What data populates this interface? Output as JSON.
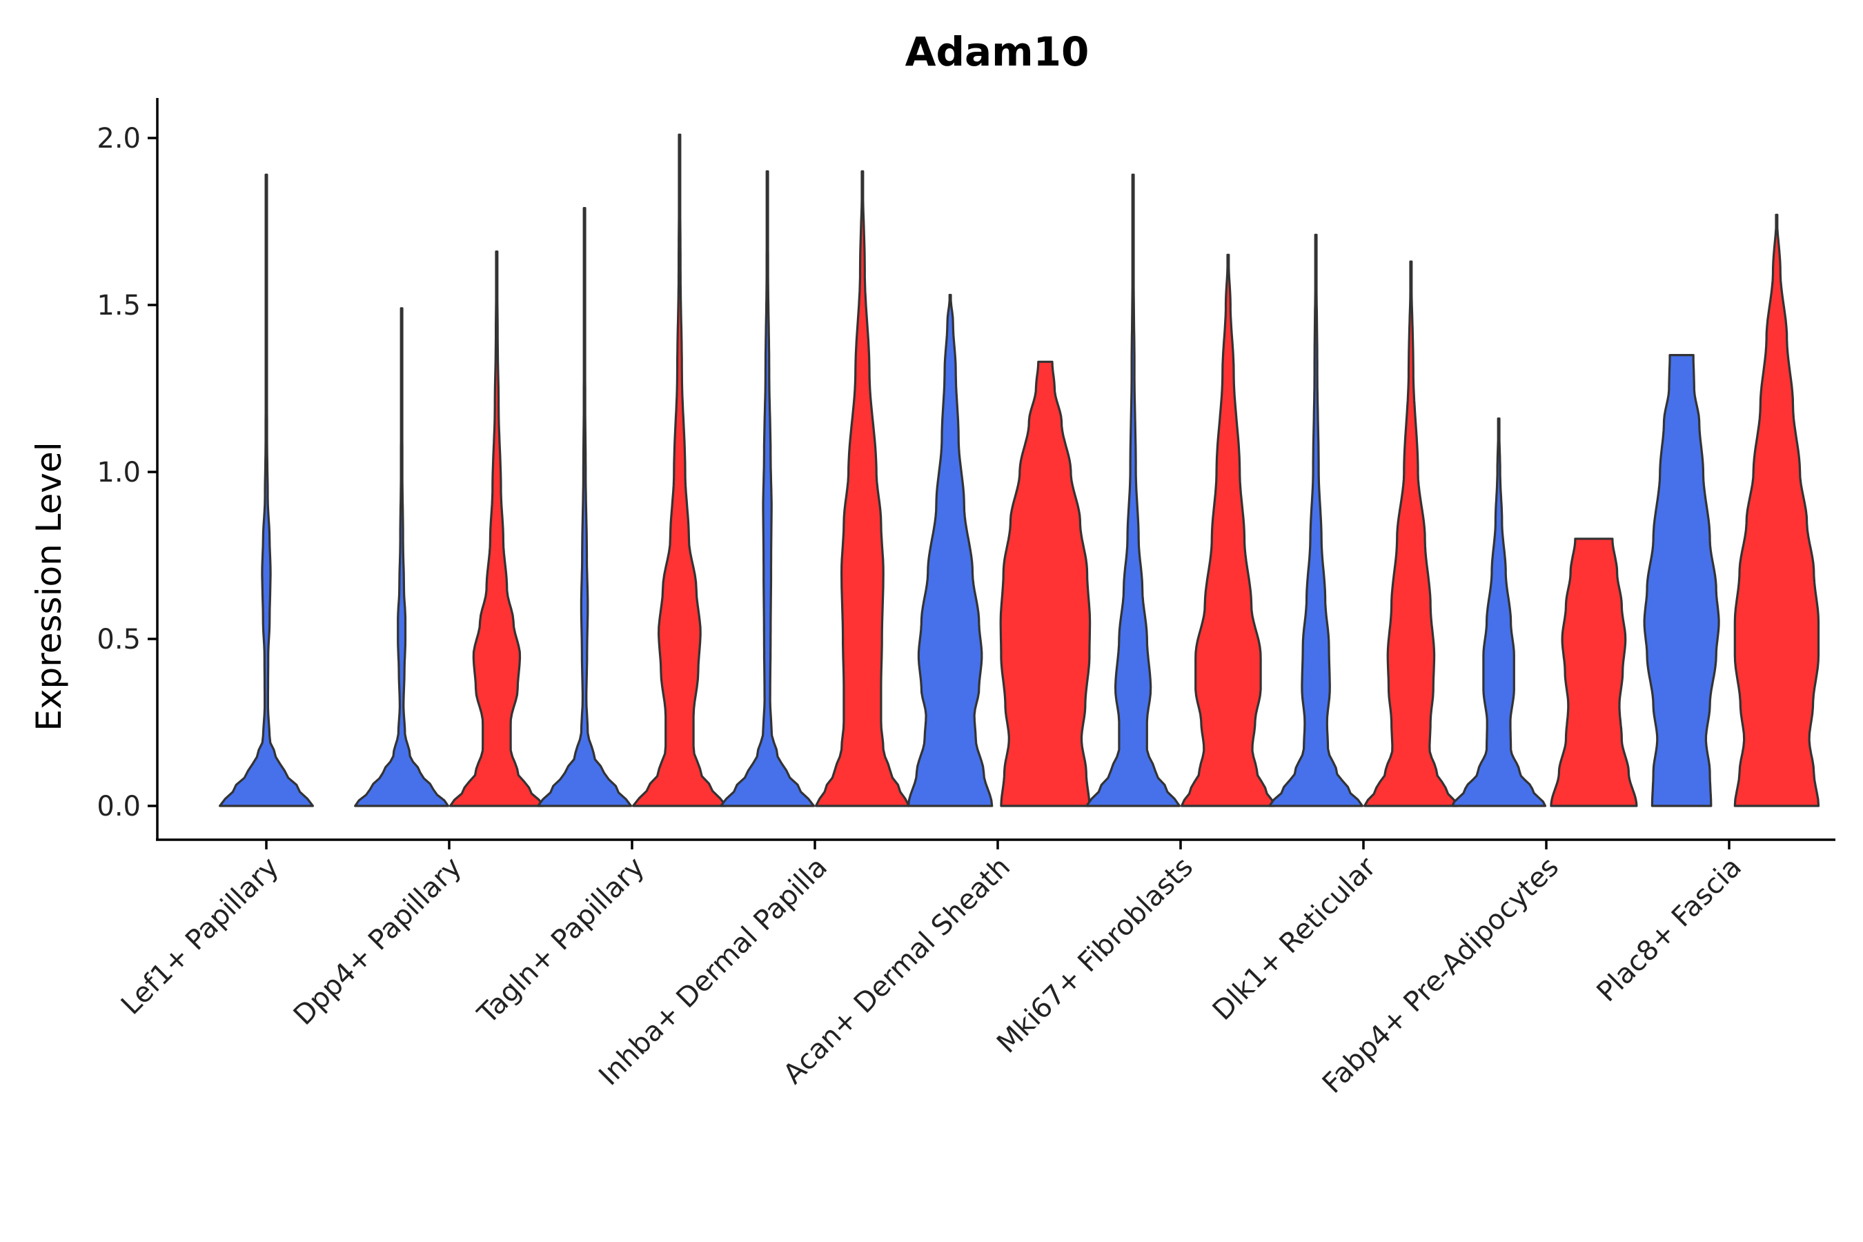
{
  "chart_data": {
    "type": "violin",
    "title": "Adam10",
    "xlabel": "",
    "ylabel": "Expression Level",
    "ylim": [
      -0.1,
      2.12
    ],
    "yticks": [
      "0.0",
      "0.5",
      "1.0",
      "1.5",
      "2.0"
    ],
    "grid": false,
    "legend": "none",
    "categories": [
      "Lef1+ Papillary",
      "Dpp4+ Papillary",
      "Tagln+ Papillary",
      "Inhba+ Dermal Papilla",
      "Acan+ Dermal Sheath",
      "Mki67+ Fibroblasts",
      "Dlk1+ Reticular",
      "Fabp4+ Pre-Adipocytes",
      "Plac8+ Fascia"
    ],
    "series": [
      {
        "name": "group1",
        "color": "#4671EB",
        "violins": [
          {
            "max": 1.89,
            "max_half_width": 0.45,
            "profile": [
              [
                0.0,
                1.0
              ],
              [
                0.05,
                0.7
              ],
              [
                0.1,
                0.4
              ],
              [
                0.15,
                0.2
              ],
              [
                0.2,
                0.07
              ],
              [
                0.3,
                0.035
              ],
              [
                0.45,
                0.04
              ],
              [
                0.55,
                0.07
              ],
              [
                0.7,
                0.09
              ],
              [
                0.8,
                0.07
              ],
              [
                0.92,
                0.03
              ],
              [
                1.1,
                0.015
              ],
              [
                1.4,
                0.008
              ],
              [
                1.89,
                0.003
              ]
            ]
          },
          {
            "max": 1.49,
            "max_half_width": 0.45,
            "profile": [
              [
                0.0,
                1.0
              ],
              [
                0.05,
                0.68
              ],
              [
                0.1,
                0.4
              ],
              [
                0.15,
                0.18
              ],
              [
                0.22,
                0.07
              ],
              [
                0.3,
                0.04
              ],
              [
                0.4,
                0.06
              ],
              [
                0.5,
                0.08
              ],
              [
                0.56,
                0.08
              ],
              [
                0.65,
                0.05
              ],
              [
                0.8,
                0.03
              ],
              [
                1.0,
                0.015
              ],
              [
                1.49,
                0.003
              ]
            ]
          },
          {
            "max": 1.79,
            "max_half_width": 0.45,
            "profile": [
              [
                0.0,
                1.0
              ],
              [
                0.05,
                0.7
              ],
              [
                0.1,
                0.42
              ],
              [
                0.15,
                0.2
              ],
              [
                0.22,
                0.07
              ],
              [
                0.32,
                0.04
              ],
              [
                0.45,
                0.055
              ],
              [
                0.6,
                0.07
              ],
              [
                0.75,
                0.05
              ],
              [
                1.0,
                0.025
              ],
              [
                1.2,
                0.015
              ],
              [
                1.5,
                0.008
              ],
              [
                1.79,
                0.003
              ]
            ]
          },
          {
            "max": 1.9,
            "max_half_width": 0.45,
            "profile": [
              [
                0.0,
                1.0
              ],
              [
                0.05,
                0.7
              ],
              [
                0.1,
                0.42
              ],
              [
                0.15,
                0.22
              ],
              [
                0.22,
                0.09
              ],
              [
                0.32,
                0.06
              ],
              [
                0.5,
                0.07
              ],
              [
                0.7,
                0.08
              ],
              [
                0.9,
                0.09
              ],
              [
                1.05,
                0.07
              ],
              [
                1.3,
                0.04
              ],
              [
                1.6,
                0.015
              ],
              [
                1.9,
                0.003
              ]
            ]
          },
          {
            "max": 1.53,
            "max_half_width": 0.45,
            "profile": [
              [
                0.0,
                0.9
              ],
              [
                0.1,
                0.72
              ],
              [
                0.2,
                0.55
              ],
              [
                0.27,
                0.52
              ],
              [
                0.35,
                0.62
              ],
              [
                0.45,
                0.68
              ],
              [
                0.55,
                0.62
              ],
              [
                0.7,
                0.48
              ],
              [
                0.9,
                0.3
              ],
              [
                1.1,
                0.18
              ],
              [
                1.3,
                0.12
              ],
              [
                1.45,
                0.06
              ],
              [
                1.53,
                0.003
              ]
            ]
          },
          {
            "max": 1.89,
            "max_half_width": 0.45,
            "profile": [
              [
                0.0,
                1.0
              ],
              [
                0.05,
                0.72
              ],
              [
                0.1,
                0.48
              ],
              [
                0.17,
                0.3
              ],
              [
                0.25,
                0.3
              ],
              [
                0.35,
                0.38
              ],
              [
                0.5,
                0.3
              ],
              [
                0.65,
                0.2
              ],
              [
                0.8,
                0.12
              ],
              [
                1.0,
                0.06
              ],
              [
                1.3,
                0.03
              ],
              [
                1.6,
                0.012
              ],
              [
                1.89,
                0.003
              ]
            ]
          },
          {
            "max": 1.71,
            "max_half_width": 0.45,
            "profile": [
              [
                0.0,
                1.0
              ],
              [
                0.05,
                0.7
              ],
              [
                0.1,
                0.45
              ],
              [
                0.17,
                0.26
              ],
              [
                0.25,
                0.24
              ],
              [
                0.35,
                0.3
              ],
              [
                0.48,
                0.28
              ],
              [
                0.62,
                0.2
              ],
              [
                0.8,
                0.12
              ],
              [
                1.0,
                0.06
              ],
              [
                1.3,
                0.03
              ],
              [
                1.71,
                0.003
              ]
            ]
          },
          {
            "max": 1.16,
            "max_half_width": 0.45,
            "profile": [
              [
                0.0,
                1.0
              ],
              [
                0.05,
                0.72
              ],
              [
                0.1,
                0.45
              ],
              [
                0.17,
                0.26
              ],
              [
                0.25,
                0.25
              ],
              [
                0.35,
                0.33
              ],
              [
                0.45,
                0.33
              ],
              [
                0.55,
                0.26
              ],
              [
                0.7,
                0.15
              ],
              [
                0.85,
                0.07
              ],
              [
                1.0,
                0.03
              ],
              [
                1.16,
                0.003
              ]
            ]
          },
          {
            "max": 1.35,
            "max_half_width": 0.38,
            "profile": [
              [
                0.0,
                0.75
              ],
              [
                0.1,
                0.72
              ],
              [
                0.2,
                0.62
              ],
              [
                0.3,
                0.72
              ],
              [
                0.45,
                0.88
              ],
              [
                0.55,
                0.95
              ],
              [
                0.65,
                0.88
              ],
              [
                0.8,
                0.72
              ],
              [
                1.0,
                0.55
              ],
              [
                1.15,
                0.45
              ],
              [
                1.25,
                0.32
              ],
              [
                1.35,
                0.3
              ]
            ]
          }
        ]
      },
      {
        "name": "group2",
        "color": "#FF3333",
        "violins": [
          {
            "max": 1.66,
            "max_half_width": 0.45,
            "profile": [
              [
                0.0,
                1.0
              ],
              [
                0.05,
                0.7
              ],
              [
                0.1,
                0.45
              ],
              [
                0.17,
                0.3
              ],
              [
                0.25,
                0.3
              ],
              [
                0.35,
                0.45
              ],
              [
                0.45,
                0.5
              ],
              [
                0.55,
                0.36
              ],
              [
                0.65,
                0.22
              ],
              [
                0.8,
                0.14
              ],
              [
                0.95,
                0.09
              ],
              [
                1.2,
                0.04
              ],
              [
                1.4,
                0.02
              ],
              [
                1.66,
                0.003
              ]
            ]
          },
          {
            "max": 2.01,
            "max_half_width": 0.45,
            "profile": [
              [
                0.0,
                1.0
              ],
              [
                0.05,
                0.7
              ],
              [
                0.1,
                0.45
              ],
              [
                0.17,
                0.3
              ],
              [
                0.27,
                0.3
              ],
              [
                0.4,
                0.4
              ],
              [
                0.52,
                0.45
              ],
              [
                0.65,
                0.36
              ],
              [
                0.8,
                0.2
              ],
              [
                1.0,
                0.12
              ],
              [
                1.3,
                0.05
              ],
              [
                1.6,
                0.02
              ],
              [
                2.01,
                0.003
              ]
            ]
          },
          {
            "max": 1.9,
            "max_half_width": 0.45,
            "profile": [
              [
                0.0,
                1.0
              ],
              [
                0.05,
                0.8
              ],
              [
                0.1,
                0.6
              ],
              [
                0.17,
                0.45
              ],
              [
                0.25,
                0.4
              ],
              [
                0.35,
                0.4
              ],
              [
                0.5,
                0.42
              ],
              [
                0.7,
                0.45
              ],
              [
                0.85,
                0.4
              ],
              [
                1.0,
                0.3
              ],
              [
                1.3,
                0.15
              ],
              [
                1.6,
                0.05
              ],
              [
                1.9,
                0.003
              ]
            ]
          },
          {
            "max": 1.33,
            "max_half_width": 0.45,
            "profile": [
              [
                0.0,
                0.95
              ],
              [
                0.1,
                0.88
              ],
              [
                0.2,
                0.78
              ],
              [
                0.3,
                0.86
              ],
              [
                0.45,
                0.95
              ],
              [
                0.55,
                0.96
              ],
              [
                0.7,
                0.9
              ],
              [
                0.85,
                0.75
              ],
              [
                1.0,
                0.55
              ],
              [
                1.15,
                0.35
              ],
              [
                1.25,
                0.2
              ],
              [
                1.33,
                0.15
              ]
            ]
          },
          {
            "max": 1.65,
            "max_half_width": 0.45,
            "profile": [
              [
                0.0,
                1.0
              ],
              [
                0.05,
                0.8
              ],
              [
                0.1,
                0.62
              ],
              [
                0.17,
                0.52
              ],
              [
                0.25,
                0.58
              ],
              [
                0.35,
                0.7
              ],
              [
                0.45,
                0.7
              ],
              [
                0.6,
                0.5
              ],
              [
                0.8,
                0.35
              ],
              [
                1.0,
                0.25
              ],
              [
                1.3,
                0.12
              ],
              [
                1.5,
                0.05
              ],
              [
                1.65,
                0.003
              ]
            ]
          },
          {
            "max": 1.63,
            "max_half_width": 0.45,
            "profile": [
              [
                0.0,
                1.0
              ],
              [
                0.05,
                0.75
              ],
              [
                0.1,
                0.55
              ],
              [
                0.17,
                0.4
              ],
              [
                0.25,
                0.42
              ],
              [
                0.35,
                0.48
              ],
              [
                0.45,
                0.5
              ],
              [
                0.6,
                0.42
              ],
              [
                0.8,
                0.3
              ],
              [
                1.0,
                0.15
              ],
              [
                1.3,
                0.05
              ],
              [
                1.63,
                0.003
              ]
            ]
          },
          {
            "max": 0.8,
            "max_half_width": 0.45,
            "profile": [
              [
                0.0,
                0.92
              ],
              [
                0.1,
                0.75
              ],
              [
                0.2,
                0.6
              ],
              [
                0.3,
                0.55
              ],
              [
                0.4,
                0.62
              ],
              [
                0.5,
                0.68
              ],
              [
                0.6,
                0.6
              ],
              [
                0.7,
                0.5
              ],
              [
                0.8,
                0.4
              ]
            ]
          },
          {
            "max": 1.77,
            "max_half_width": 0.45,
            "profile": [
              [
                0.0,
                0.9
              ],
              [
                0.1,
                0.8
              ],
              [
                0.2,
                0.7
              ],
              [
                0.3,
                0.78
              ],
              [
                0.45,
                0.9
              ],
              [
                0.55,
                0.9
              ],
              [
                0.7,
                0.8
              ],
              [
                0.85,
                0.65
              ],
              [
                1.0,
                0.5
              ],
              [
                1.2,
                0.35
              ],
              [
                1.4,
                0.22
              ],
              [
                1.6,
                0.08
              ],
              [
                1.77,
                0.003
              ]
            ]
          }
        ]
      }
    ],
    "violins_per_category": [
      [
        "group1"
      ],
      [
        "group1",
        "group2"
      ],
      [
        "group1",
        "group2"
      ],
      [
        "group1",
        "group2"
      ],
      [
        "group1",
        "group2"
      ],
      [
        "group1",
        "group2"
      ],
      [
        "group1",
        "group2"
      ],
      [
        "group1",
        "group2"
      ],
      [
        "group1",
        "group2"
      ]
    ]
  }
}
